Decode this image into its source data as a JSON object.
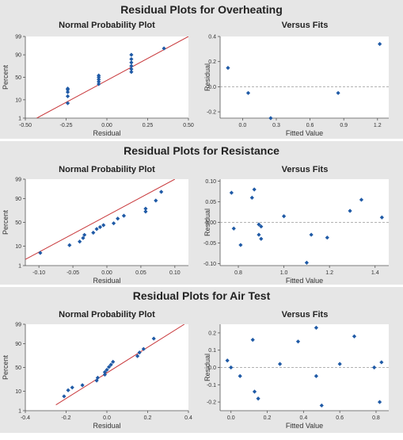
{
  "chart_data": [
    {
      "title": "Residual Plots for Overheating",
      "plots": [
        {
          "type": "scatter",
          "subtitle": "Normal Probability Plot",
          "xlabel": "Residual",
          "ylabel": "Percent",
          "xlim": [
            -0.5,
            0.5
          ],
          "xticks": [
            -0.5,
            -0.25,
            0,
            0.25,
            0.5
          ],
          "xtick_labels": [
            "-0.50",
            "-0.25",
            "0.00",
            "0.25",
            "0.50"
          ],
          "ylim": [
            1,
            99
          ],
          "yscale": "probability",
          "yticks": [
            1,
            10,
            50,
            90,
            99
          ],
          "points": [
            [
              -0.24,
              7
            ],
            [
              -0.24,
              14
            ],
            [
              -0.24,
              20
            ],
            [
              -0.24,
              24
            ],
            [
              -0.24,
              26
            ],
            [
              -0.05,
              35
            ],
            [
              -0.05,
              40
            ],
            [
              -0.05,
              45
            ],
            [
              -0.05,
              50
            ],
            [
              -0.05,
              54
            ],
            [
              0.15,
              62
            ],
            [
              0.15,
              68
            ],
            [
              0.15,
              74
            ],
            [
              0.15,
              80
            ],
            [
              0.15,
              85
            ],
            [
              0.15,
              90
            ],
            [
              0.35,
              95
            ]
          ],
          "fit_line": [
            [
              -0.43,
              1
            ],
            [
              0.5,
              99
            ]
          ]
        },
        {
          "type": "scatter",
          "subtitle": "Versus Fits",
          "xlabel": "Fitted Value",
          "ylabel": "Residual",
          "xlim": [
            -0.2,
            1.3
          ],
          "xticks": [
            0,
            0.3,
            0.6,
            0.9,
            1.2
          ],
          "xtick_labels": [
            "0.0",
            "0.3",
            "0.6",
            "0.9",
            "1.2"
          ],
          "ylim": [
            -0.25,
            0.4
          ],
          "yticks": [
            -0.2,
            0,
            0.2,
            0.4
          ],
          "ytick_labels": [
            "-0.2",
            "0.0",
            "0.2",
            "0.4"
          ],
          "reference_line": 0,
          "points": [
            [
              -0.13,
              0.15
            ],
            [
              0.05,
              -0.05
            ],
            [
              0.25,
              -0.25
            ],
            [
              0.85,
              -0.05
            ],
            [
              1.22,
              0.34
            ]
          ]
        }
      ]
    },
    {
      "title": "Residual Plots for Resistance",
      "plots": [
        {
          "type": "scatter",
          "subtitle": "Normal Probability Plot",
          "xlabel": "Residual",
          "ylabel": "Percent",
          "xlim": [
            -0.12,
            0.12
          ],
          "xticks": [
            -0.1,
            -0.05,
            0,
            0.05,
            0.1
          ],
          "xtick_labels": [
            "-0.10",
            "-0.05",
            "0.00",
            "0.05",
            "0.10"
          ],
          "ylim": [
            1,
            99
          ],
          "yscale": "probability",
          "yticks": [
            1,
            10,
            50,
            90,
            99
          ],
          "points": [
            [
              -0.098,
              5
            ],
            [
              -0.055,
              11
            ],
            [
              -0.04,
              15
            ],
            [
              -0.035,
              20
            ],
            [
              -0.033,
              25
            ],
            [
              -0.02,
              29
            ],
            [
              -0.015,
              36
            ],
            [
              -0.01,
              40
            ],
            [
              -0.005,
              44
            ],
            [
              0.01,
              48
            ],
            [
              0.016,
              58
            ],
            [
              0.025,
              64
            ],
            [
              0.057,
              72
            ],
            [
              0.057,
              77
            ],
            [
              0.072,
              88
            ],
            [
              0.08,
              95
            ]
          ],
          "fit_line": [
            [
              -0.12,
              2.3
            ],
            [
              0.1,
              99
            ]
          ]
        },
        {
          "type": "scatter",
          "subtitle": "Versus Fits",
          "xlabel": "Fitted Value",
          "ylabel": "Residual",
          "xlim": [
            0.72,
            1.46
          ],
          "xticks": [
            0.8,
            1.0,
            1.2,
            1.4
          ],
          "xtick_labels": [
            "0.8",
            "1.0",
            "1.2",
            "1.4"
          ],
          "ylim": [
            -0.105,
            0.105
          ],
          "yticks": [
            -0.1,
            -0.05,
            0,
            0.05,
            0.1
          ],
          "ytick_labels": [
            "-0.10",
            "-0.05",
            "0.00",
            "0.05",
            "0.10"
          ],
          "reference_line": 0,
          "points": [
            [
              0.77,
              0.072
            ],
            [
              0.78,
              -0.015
            ],
            [
              0.81,
              -0.055
            ],
            [
              0.86,
              0.06
            ],
            [
              0.87,
              0.08
            ],
            [
              0.89,
              -0.005
            ],
            [
              0.9,
              -0.01
            ],
            [
              0.89,
              -0.03
            ],
            [
              0.9,
              -0.04
            ],
            [
              1.0,
              0.015
            ],
            [
              1.1,
              -0.098
            ],
            [
              1.12,
              -0.03
            ],
            [
              1.19,
              -0.037
            ],
            [
              1.29,
              0.028
            ],
            [
              1.34,
              0.055
            ],
            [
              1.43,
              0.012
            ]
          ]
        }
      ]
    },
    {
      "title": "Residual Plots for Air Test",
      "plots": [
        {
          "type": "scatter",
          "subtitle": "Normal Probability Plot",
          "xlabel": "Residual",
          "ylabel": "Percent",
          "xlim": [
            -0.4,
            0.4
          ],
          "xticks": [
            -0.4,
            -0.2,
            0,
            0.2,
            0.4
          ],
          "xtick_labels": [
            "-0.4",
            "-0.2",
            "0.0",
            "0.2",
            "0.4"
          ],
          "ylim": [
            1,
            99
          ],
          "yscale": "probability",
          "yticks": [
            1,
            10,
            50,
            90,
            99
          ],
          "points": [
            [
              -0.21,
              6
            ],
            [
              -0.19,
              11
            ],
            [
              -0.17,
              14
            ],
            [
              -0.12,
              17
            ],
            [
              -0.05,
              24
            ],
            [
              -0.045,
              29
            ],
            [
              -0.01,
              35
            ],
            [
              -0.01,
              40
            ],
            [
              0.0,
              45
            ],
            [
              0.01,
              51
            ],
            [
              0.02,
              56
            ],
            [
              0.03,
              62
            ],
            [
              0.15,
              73
            ],
            [
              0.16,
              79
            ],
            [
              0.18,
              84
            ],
            [
              0.23,
              94
            ]
          ],
          "fit_line": [
            [
              -0.25,
              2.2
            ],
            [
              0.38,
              99
            ]
          ]
        },
        {
          "type": "scatter",
          "subtitle": "Versus Fits",
          "xlabel": "Fitted Value",
          "ylabel": "Residual",
          "xlim": [
            -0.06,
            0.87
          ],
          "xticks": [
            0,
            0.2,
            0.4,
            0.6,
            0.8
          ],
          "xtick_labels": [
            "0.0",
            "0.2",
            "0.4",
            "0.6",
            "0.8"
          ],
          "ylim": [
            -0.25,
            0.25
          ],
          "yticks": [
            -0.2,
            -0.1,
            0,
            0.1,
            0.2
          ],
          "ytick_labels": [
            "-0.2",
            "-0.1",
            "0.0",
            "0.1",
            "0.2"
          ],
          "reference_line": 0,
          "points": [
            [
              -0.02,
              0.04
            ],
            [
              0.0,
              0.0
            ],
            [
              0.05,
              -0.05
            ],
            [
              0.12,
              0.16
            ],
            [
              0.13,
              -0.14
            ],
            [
              0.15,
              -0.18
            ],
            [
              0.27,
              0.02
            ],
            [
              0.37,
              0.15
            ],
            [
              0.47,
              0.23
            ],
            [
              0.47,
              -0.05
            ],
            [
              0.5,
              -0.22
            ],
            [
              0.6,
              0.02
            ],
            [
              0.68,
              0.18
            ],
            [
              0.79,
              0.0
            ],
            [
              0.82,
              -0.2
            ],
            [
              0.83,
              0.03
            ]
          ]
        }
      ]
    }
  ],
  "colors": {
    "point": "#1f5aa6",
    "fit_line": "#c8373a",
    "reference_line": "#999999",
    "panel_bg": "#e6e6e6",
    "plot_bg": "#ffffff"
  }
}
